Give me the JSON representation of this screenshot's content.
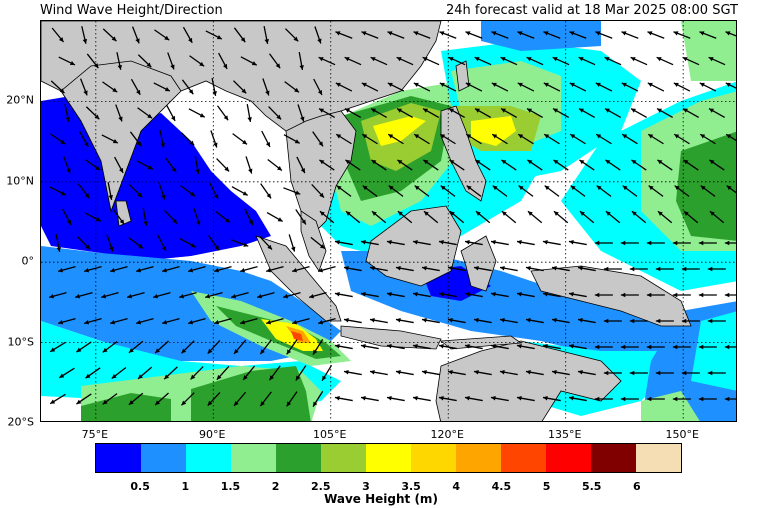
{
  "header": {
    "title": "Wind Wave Height/Direction",
    "valid": "24h forecast valid at 18 Mar 2025 08:00 SGT"
  },
  "map": {
    "lon_range": [
      68,
      157
    ],
    "lat_range": [
      -20,
      30
    ],
    "lat_labels": [
      {
        "lat": 20,
        "label": "20°N"
      },
      {
        "lat": 10,
        "label": "10°N"
      },
      {
        "lat": 0,
        "label": "0°"
      },
      {
        "lat": -10,
        "label": "10°S"
      },
      {
        "lat": -20,
        "label": "20°S"
      }
    ],
    "lon_labels": [
      {
        "lon": 75,
        "label": "75°E"
      },
      {
        "lon": 90,
        "label": "90°E"
      },
      {
        "lon": 105,
        "label": "105°E"
      },
      {
        "lon": 120,
        "label": "120°E"
      },
      {
        "lon": 135,
        "label": "135°E"
      },
      {
        "lon": 150,
        "label": "150°E"
      }
    ],
    "land_color": "#c8c8c8",
    "grid_style": "dotted"
  },
  "colorbar": {
    "label": "Wave Height (m)",
    "ticks": [
      "0.5",
      "1",
      "1.5",
      "2",
      "2.5",
      "3",
      "3.5",
      "4",
      "4.5",
      "5",
      "5.5",
      "6"
    ],
    "colors": [
      "#0000ff",
      "#1e90ff",
      "#00ffff",
      "#90ee90",
      "#2ca02c",
      "#9acd32",
      "#ffff00",
      "#ffd700",
      "#ffa500",
      "#ff4500",
      "#ff0000",
      "#800000",
      "#f5deb3"
    ]
  }
}
